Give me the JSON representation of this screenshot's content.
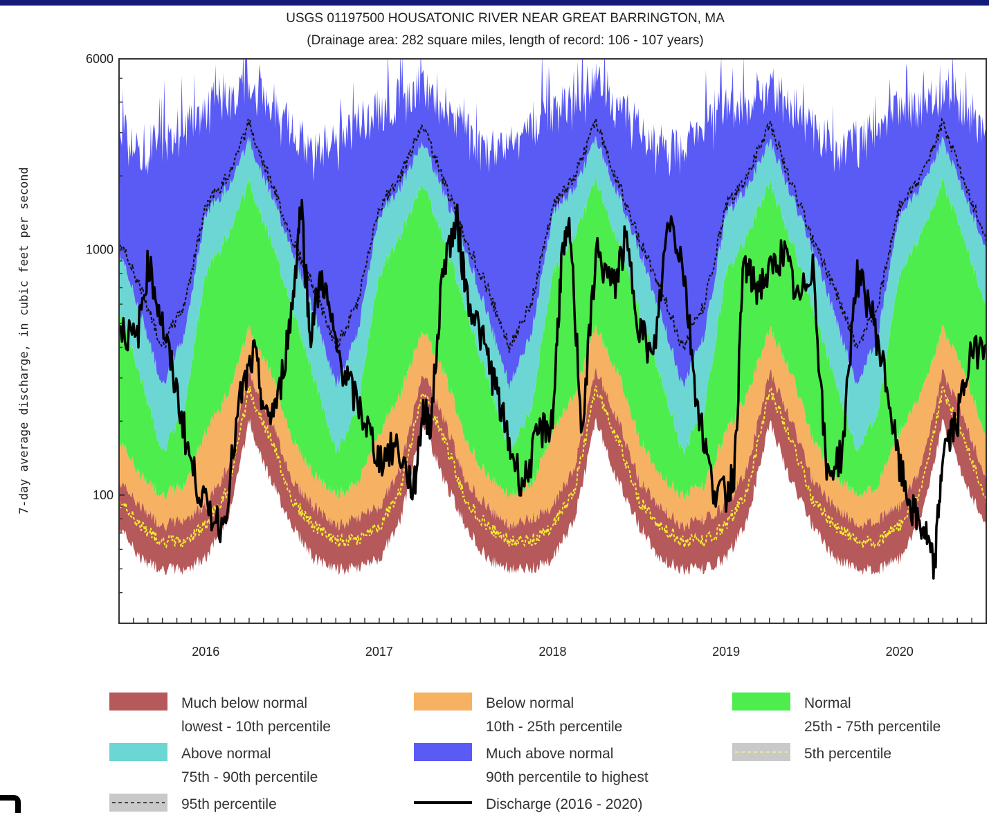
{
  "chart_data": {
    "type": "area",
    "title": "USGS 01197500 HOUSATONIC RIVER NEAR GREAT BARRINGTON, MA",
    "subtitle": "(Drainage area: 282 square miles, length of record: 106 - 107 years)",
    "ylabel": "7-day average discharge, in cubic feet per second",
    "xlabel": "",
    "y_scale": "log",
    "ylim": [
      30,
      6000
    ],
    "y_ticks": [
      {
        "value": 100,
        "label": "100"
      },
      {
        "value": 1000,
        "label": "1000"
      },
      {
        "value": 6000,
        "label": "6000"
      }
    ],
    "xlim": [
      2015.5,
      2020.5
    ],
    "x_ticks": [
      {
        "value": 2016.0,
        "label": "2016"
      },
      {
        "value": 2017.0,
        "label": "2017"
      },
      {
        "value": 2018.0,
        "label": "2018"
      },
      {
        "value": 2019.0,
        "label": "2019"
      },
      {
        "value": 2020.0,
        "label": "2020"
      }
    ],
    "percentile_bands_seasonal": {
      "month_of_year": [
        0.0,
        0.125,
        0.25,
        0.375,
        0.5,
        0.625,
        0.75,
        0.875,
        1.0
      ],
      "min": [
        55,
        80,
        200,
        115,
        75,
        55,
        50,
        50,
        55
      ],
      "p5": [
        75,
        105,
        270,
        170,
        95,
        75,
        65,
        65,
        75
      ],
      "p10": [
        90,
        130,
        320,
        205,
        115,
        90,
        75,
        80,
        90
      ],
      "p25": [
        180,
        260,
        480,
        320,
        170,
        120,
        100,
        110,
        180
      ],
      "p75": [
        800,
        1150,
        1900,
        1100,
        580,
        300,
        150,
        220,
        800
      ],
      "p90": [
        1400,
        1800,
        2800,
        1700,
        1000,
        550,
        280,
        450,
        1400
      ],
      "p95": [
        1500,
        2000,
        3300,
        1900,
        1100,
        700,
        400,
        600,
        1500
      ],
      "max": [
        4500,
        4800,
        5800,
        4700,
        3800,
        3000,
        3300,
        3800,
        4500
      ]
    },
    "discharge_series": {
      "name": "Discharge (2016 - 2020)",
      "x": [
        2015.5,
        2015.6,
        2015.67,
        2015.75,
        2015.83,
        2015.92,
        2016.0,
        2016.1,
        2016.2,
        2016.28,
        2016.35,
        2016.42,
        2016.5,
        2016.55,
        2016.6,
        2016.67,
        2016.75,
        2016.83,
        2016.92,
        2017.0,
        2017.1,
        2017.2,
        2017.25,
        2017.3,
        2017.37,
        2017.45,
        2017.5,
        2017.6,
        2017.67,
        2017.75,
        2017.83,
        2017.92,
        2018.0,
        2018.05,
        2018.1,
        2018.17,
        2018.25,
        2018.35,
        2018.42,
        2018.5,
        2018.58,
        2018.67,
        2018.75,
        2018.83,
        2018.92,
        2019.0,
        2019.05,
        2019.1,
        2019.17,
        2019.25,
        2019.33,
        2019.42,
        2019.5,
        2019.58,
        2019.67,
        2019.75,
        2019.83,
        2019.92,
        2020.0,
        2020.08,
        2020.15,
        2020.2,
        2020.25,
        2020.33,
        2020.4,
        2020.5
      ],
      "y": [
        500,
        420,
        900,
        500,
        270,
        130,
        90,
        75,
        250,
        380,
        200,
        250,
        600,
        1600,
        450,
        800,
        400,
        280,
        200,
        140,
        160,
        105,
        220,
        200,
        900,
        1300,
        700,
        420,
        280,
        160,
        110,
        180,
        200,
        900,
        1200,
        180,
        1000,
        700,
        1100,
        500,
        350,
        1400,
        900,
        250,
        110,
        100,
        130,
        900,
        700,
        800,
        1000,
        600,
        900,
        120,
        150,
        800,
        600,
        300,
        130,
        85,
        70,
        50,
        150,
        200,
        350,
        450
      ]
    },
    "series_colors": {
      "much_below_normal": "#b5595a",
      "below_normal": "#f6b162",
      "normal": "#4ced4c",
      "above_normal": "#6cd6d4",
      "much_above_normal": "#5a5af5",
      "percentile_5_line": "#f5ec33",
      "percentile_95_line": "#111111",
      "discharge": "#000000"
    },
    "legend": [
      {
        "key": "much_below",
        "label": "Much below normal",
        "sublabel": "lowest - 10th percentile",
        "swatch": "#b5595a",
        "style": "box"
      },
      {
        "key": "below",
        "label": "Below normal",
        "sublabel": "10th - 25th percentile",
        "swatch": "#f6b162",
        "style": "box"
      },
      {
        "key": "normal",
        "label": "Normal",
        "sublabel": "25th - 75th percentile",
        "swatch": "#4ced4c",
        "style": "box"
      },
      {
        "key": "above",
        "label": "Above normal",
        "sublabel": "75th - 90th percentile",
        "swatch": "#6cd6d4",
        "style": "box"
      },
      {
        "key": "much_above",
        "label": "Much above normal",
        "sublabel": "90th percentile to highest",
        "swatch": "#5a5af5",
        "style": "box"
      },
      {
        "key": "p5",
        "label": "5th percentile",
        "sublabel": "",
        "swatch": "#c9c9c9",
        "style": "dash-box"
      },
      {
        "key": "p95",
        "label": "95th percentile",
        "sublabel": "",
        "swatch": "#c9c9c9",
        "style": "dash-box"
      },
      {
        "key": "discharge",
        "label": "Discharge (2016 - 2020)",
        "sublabel": "",
        "swatch": "#000000",
        "style": "line"
      }
    ],
    "legend_position": "bottom",
    "grid": false
  }
}
